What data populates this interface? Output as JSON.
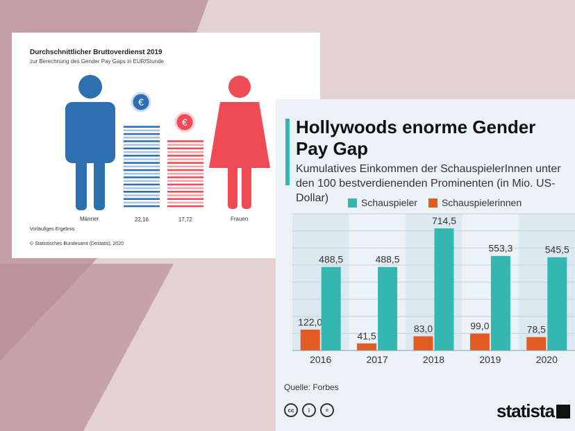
{
  "colors": {
    "maenner": "#2e6fb0",
    "maenner_light": "#a9c3e2",
    "frauen": "#ef4b55",
    "frauen_light": "#f6a3a8",
    "schauspieler": "#35b7b1",
    "schauspielerinnen": "#e25b24"
  },
  "destatis": {
    "title": "Durchschnittlicher Bruttoverdienst 2019",
    "subtitle": "zur Berechnung des Gender Pay Gaps in EUR/Stunde",
    "euro_symbol": "€",
    "label_maenner": "Männer",
    "label_frauen": "Frauen",
    "note": "Vorläufiges Ergebnis",
    "source": "© Statistisches Bundesamt (Destatis), 2020"
  },
  "statista": {
    "title": "Hollywoods enorme Gender Pay Gap",
    "subtitle": "Kumulatives Einkommen der SchauspielerInnen unter den 100 bestverdienenden Prominenten (in Mio. US-Dollar)",
    "source": "Quelle: Forbes",
    "brand": "statista",
    "cc_icons": [
      "cc-icon",
      "by-icon",
      "nd-icon"
    ],
    "cc_labels": [
      "cc",
      "i",
      "="
    ]
  },
  "chart_data": [
    {
      "type": "bar",
      "title": "Durchschnittlicher Bruttoverdienst 2019",
      "subtitle": "zur Berechnung des Gender Pay Gaps in EUR/Stunde",
      "categories": [
        "Männer",
        "Frauen"
      ],
      "values": [
        22.16,
        17.72
      ],
      "value_labels": [
        "22,16",
        "17,72"
      ]
    },
    {
      "type": "bar",
      "title": "Hollywoods enorme Gender Pay Gap",
      "categories": [
        "2016",
        "2017",
        "2018",
        "2019",
        "2020"
      ],
      "series": [
        {
          "name": "Schauspieler",
          "values": [
            488.5,
            488.5,
            714.5,
            553.3,
            545.5
          ],
          "labels": [
            "488,5",
            "488,5",
            "714,5",
            "553,3",
            "545,5"
          ]
        },
        {
          "name": "Schauspielerinnen",
          "values": [
            122.0,
            41.5,
            83.0,
            99.0,
            78.5
          ],
          "labels": [
            "122,0",
            "41,5",
            "83,0",
            "99,0",
            "78,5"
          ]
        }
      ],
      "ylim": [
        0,
        800
      ],
      "grid": true,
      "legend": "top"
    }
  ]
}
